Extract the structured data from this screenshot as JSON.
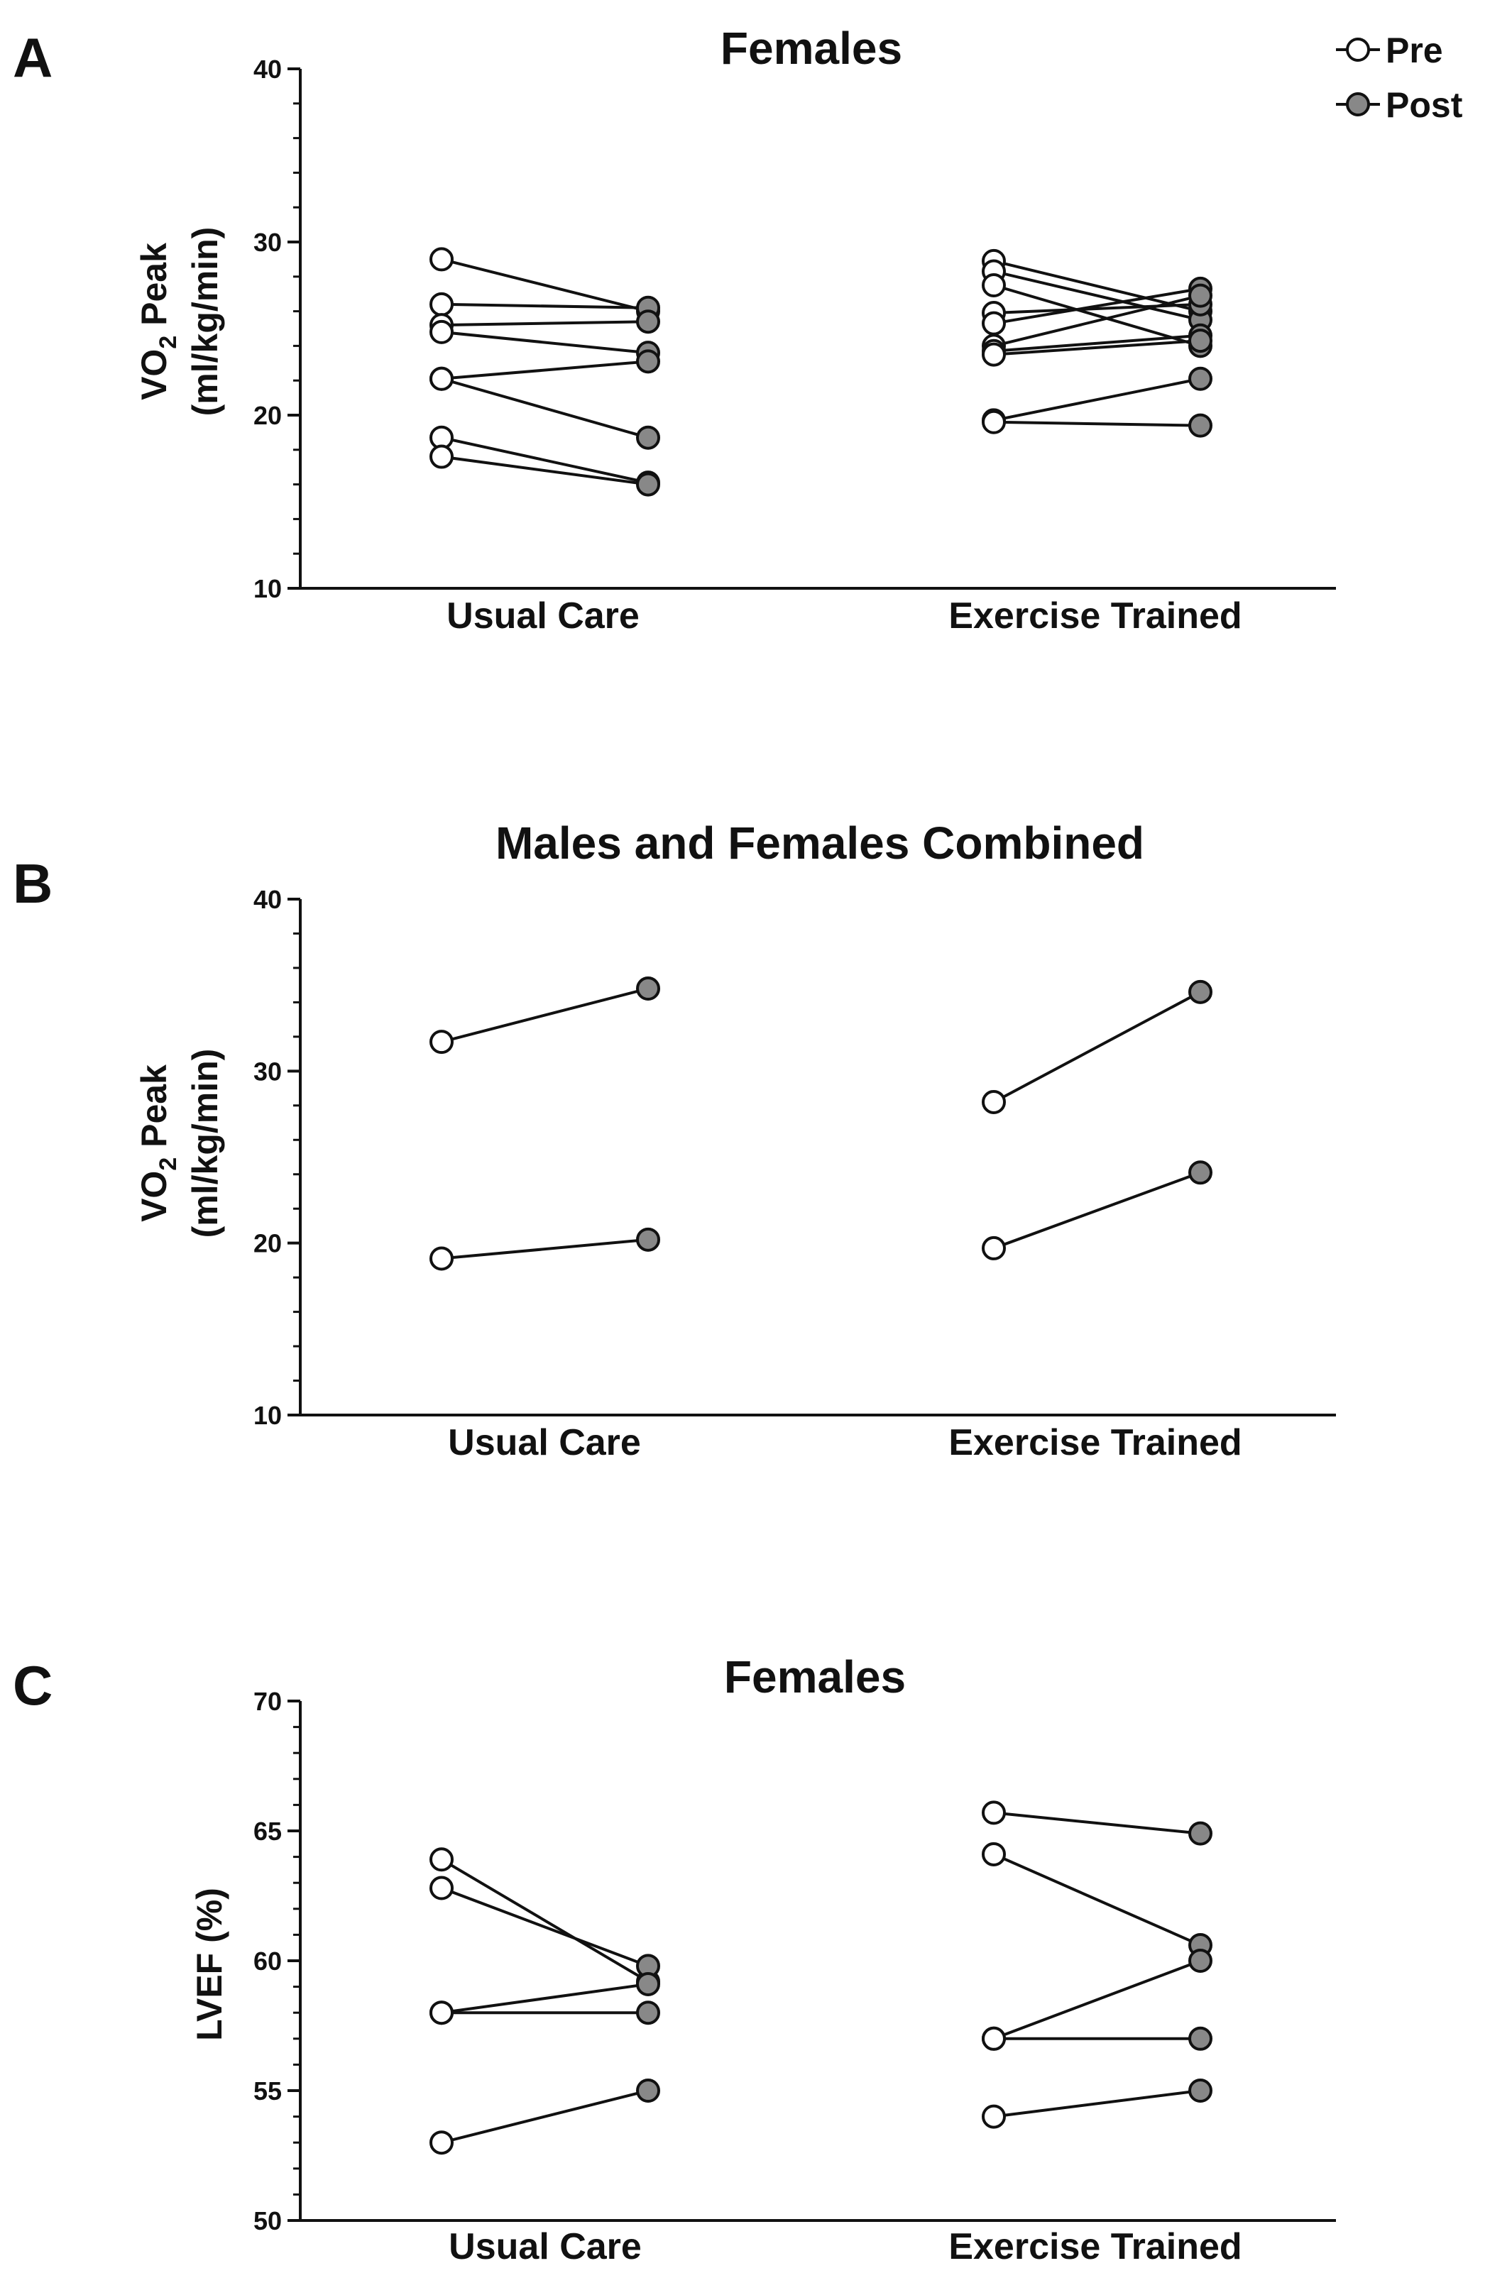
{
  "legend": {
    "pre_label": "Pre",
    "post_label": "Post",
    "pre_color": "#ffffff",
    "post_color": "#888888"
  },
  "chart_data": [
    {
      "panel": "A",
      "type": "line",
      "title": "Females",
      "ylabel_main": "VO",
      "ylabel_sub": "2",
      "ylabel_rest": " Peak",
      "ylabel_units": "(ml/kg/min)",
      "ylim": [
        10,
        40
      ],
      "yticks": [
        10,
        20,
        30,
        40
      ],
      "minor_step": 2,
      "categories": [
        "Usual Care",
        "Exercise Trained"
      ],
      "groups": [
        {
          "name": "Usual Care",
          "pairs": [
            [
              29.0,
              26.0
            ],
            [
              26.4,
              26.2
            ],
            [
              25.2,
              25.4
            ],
            [
              24.8,
              23.6
            ],
            [
              22.1,
              23.1
            ],
            [
              22.1,
              18.7
            ],
            [
              18.7,
              16.1
            ],
            [
              17.6,
              16.0
            ]
          ]
        },
        {
          "name": "Exercise Trained",
          "pairs": [
            [
              28.9,
              26.0
            ],
            [
              28.3,
              25.5
            ],
            [
              27.5,
              24.0
            ],
            [
              25.9,
              26.4
            ],
            [
              25.3,
              27.3
            ],
            [
              24.0,
              26.9
            ],
            [
              23.7,
              24.6
            ],
            [
              23.5,
              24.3
            ],
            [
              19.7,
              22.1
            ],
            [
              19.6,
              19.4
            ]
          ]
        }
      ]
    },
    {
      "panel": "B",
      "type": "line",
      "title": "Males and Females Combined",
      "ylabel_main": "VO",
      "ylabel_sub": "2",
      "ylabel_rest": " Peak",
      "ylabel_units": "(ml/kg/min)",
      "ylim": [
        10,
        40
      ],
      "yticks": [
        10,
        20,
        30,
        40
      ],
      "minor_step": 2,
      "categories": [
        "Usual Care",
        "Exercise Trained"
      ],
      "groups": [
        {
          "name": "Usual Care",
          "pairs": [
            [
              31.7,
              34.8
            ],
            [
              19.1,
              20.2
            ]
          ]
        },
        {
          "name": "Exercise Trained",
          "pairs": [
            [
              28.2,
              34.6
            ],
            [
              19.7,
              24.1
            ]
          ]
        }
      ]
    },
    {
      "panel": "C",
      "type": "line",
      "title": "Females",
      "ylabel_main": "LVEF (%)",
      "ylabel_sub": "",
      "ylabel_rest": "",
      "ylabel_units": "",
      "ylim": [
        50,
        70
      ],
      "yticks": [
        50,
        55,
        60,
        65,
        70
      ],
      "minor_step": 1,
      "categories": [
        "Usual Care",
        "Exercise Trained"
      ],
      "groups": [
        {
          "name": "Usual Care",
          "pairs": [
            [
              63.9,
              59.2
            ],
            [
              62.8,
              59.8
            ],
            [
              58.0,
              59.1
            ],
            [
              58.0,
              58.0
            ],
            [
              53.0,
              55.0
            ]
          ]
        },
        {
          "name": "Exercise Trained",
          "pairs": [
            [
              65.7,
              64.9
            ],
            [
              64.1,
              60.6
            ],
            [
              57.0,
              60.0
            ],
            [
              57.0,
              57.0
            ],
            [
              54.0,
              55.0
            ]
          ]
        }
      ]
    }
  ]
}
